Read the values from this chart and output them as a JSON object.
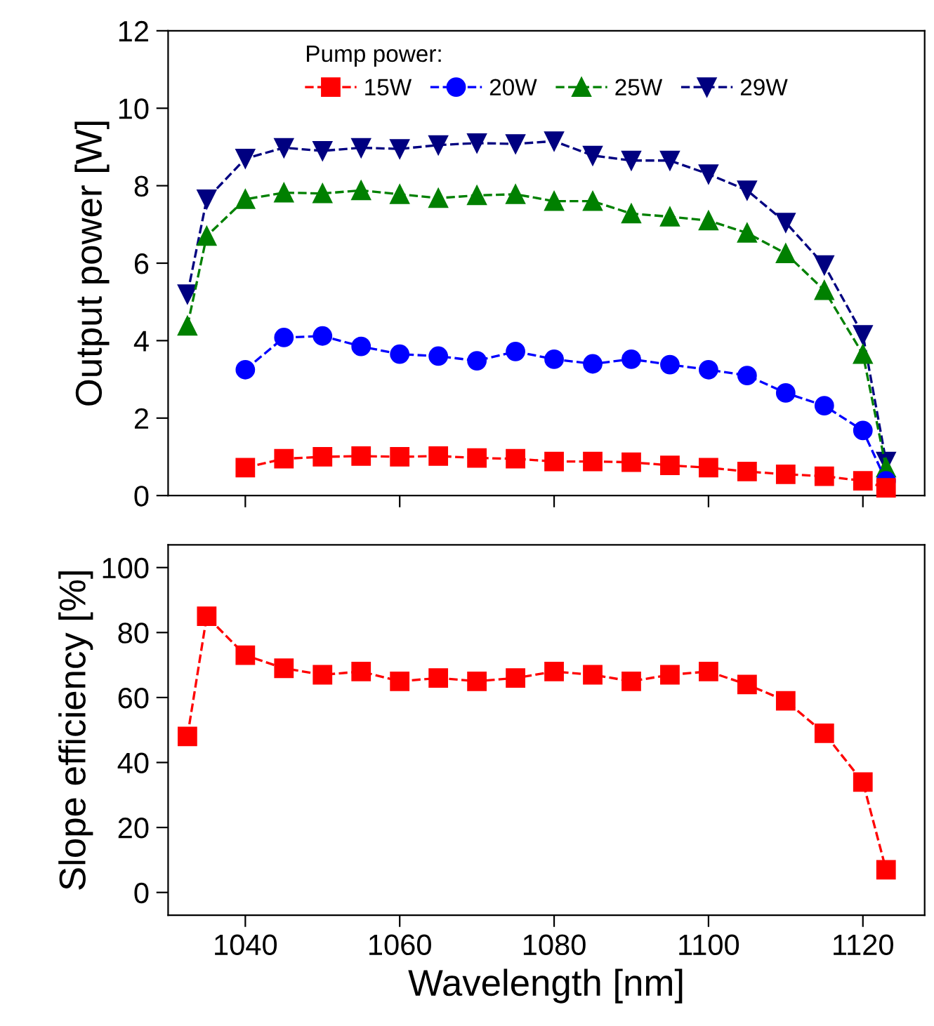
{
  "chart_data": [
    {
      "type": "line",
      "ylabel": "Output power [W]",
      "legend_title": "Pump power:",
      "legend": "top",
      "line_style": "dashed",
      "xlim": [
        1030,
        1128
      ],
      "xticks": [
        1040,
        1060,
        1080,
        1100,
        1120
      ],
      "ylim": [
        0,
        12
      ],
      "yticks": [
        0,
        2,
        4,
        6,
        8,
        10,
        12
      ],
      "tick_labels": "y",
      "grid": false,
      "series": [
        {
          "name": "15W",
          "color": "#ff0000",
          "marker": "square",
          "x": [
            1040,
            1045,
            1050,
            1055,
            1060,
            1065,
            1070,
            1075,
            1080,
            1085,
            1090,
            1095,
            1100,
            1105,
            1110,
            1115,
            1120,
            1123
          ],
          "values": [
            0.72,
            0.95,
            1.0,
            1.02,
            1.0,
            1.02,
            0.97,
            0.95,
            0.88,
            0.88,
            0.86,
            0.78,
            0.72,
            0.62,
            0.55,
            0.5,
            0.38,
            0.2
          ]
        },
        {
          "name": "20W",
          "color": "#0000ff",
          "marker": "circle",
          "x": [
            1040,
            1045,
            1050,
            1055,
            1060,
            1065,
            1070,
            1075,
            1080,
            1085,
            1090,
            1095,
            1100,
            1105,
            1110,
            1115,
            1120,
            1123
          ],
          "values": [
            3.25,
            4.08,
            4.12,
            3.85,
            3.65,
            3.6,
            3.48,
            3.72,
            3.52,
            3.4,
            3.52,
            3.38,
            3.25,
            3.1,
            2.65,
            2.32,
            1.68,
            0.38
          ]
        },
        {
          "name": "25W",
          "color": "#008000",
          "marker": "triangle",
          "x": [
            1032.5,
            1035,
            1040,
            1045,
            1050,
            1055,
            1060,
            1065,
            1070,
            1075,
            1080,
            1085,
            1090,
            1095,
            1100,
            1105,
            1110,
            1115,
            1120,
            1123
          ],
          "values": [
            4.38,
            6.7,
            7.65,
            7.82,
            7.8,
            7.88,
            7.78,
            7.68,
            7.75,
            7.78,
            7.6,
            7.6,
            7.28,
            7.2,
            7.1,
            6.78,
            6.25,
            5.3,
            3.65,
            0.72
          ]
        },
        {
          "name": "29W",
          "color": "#000080",
          "marker": "triangle_down",
          "x": [
            1032.5,
            1035,
            1040,
            1045,
            1050,
            1055,
            1060,
            1065,
            1070,
            1075,
            1080,
            1085,
            1090,
            1095,
            1100,
            1105,
            1110,
            1115,
            1120,
            1123
          ],
          "values": [
            5.2,
            7.65,
            8.7,
            8.98,
            8.9,
            8.98,
            8.95,
            9.05,
            9.1,
            9.08,
            9.15,
            8.78,
            8.65,
            8.65,
            8.3,
            7.88,
            7.05,
            5.95,
            4.15,
            0.88
          ]
        }
      ]
    },
    {
      "type": "line",
      "xlabel": "Wavelength [nm]",
      "ylabel": "Slope efficiency [%]",
      "line_style": "dashed",
      "xlim": [
        1030,
        1128
      ],
      "xticks": [
        1040,
        1060,
        1080,
        1100,
        1120
      ],
      "ylim": [
        -7,
        107
      ],
      "yticks": [
        0,
        20,
        40,
        60,
        80,
        100
      ],
      "grid": false,
      "legend": false,
      "series": [
        {
          "color": "#ff0000",
          "marker": "square",
          "x": [
            1032.5,
            1035,
            1040,
            1045,
            1050,
            1055,
            1060,
            1065,
            1070,
            1075,
            1080,
            1085,
            1090,
            1095,
            1100,
            1105,
            1110,
            1115,
            1120,
            1123
          ],
          "values": [
            48,
            85,
            73,
            69,
            67,
            68,
            65,
            66,
            65,
            66,
            68,
            67,
            65,
            67,
            68,
            64,
            59,
            49,
            34,
            7
          ]
        }
      ]
    }
  ]
}
